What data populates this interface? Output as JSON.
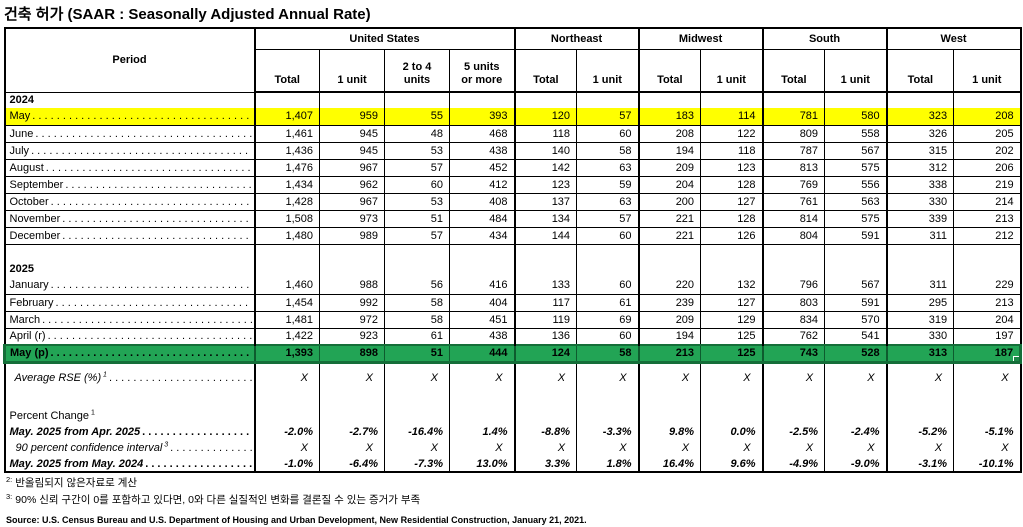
{
  "title": "건축 허가 (SAAR : Seasonally Adjusted Annual Rate)",
  "colors": {
    "highlight_yellow": "#FFFF00",
    "highlight_green": "#22A455",
    "green_selection_border": "#156E39"
  },
  "table": {
    "period_header": "Period",
    "groups": [
      {
        "label": "United States"
      },
      {
        "label": "Northeast"
      },
      {
        "label": "Midwest"
      },
      {
        "label": "South"
      },
      {
        "label": "West"
      }
    ],
    "subheaders": [
      "Total",
      "1 unit",
      "2 to 4\nunits",
      "5 units\nor more",
      "Total",
      "1 unit",
      "Total",
      "1 unit",
      "Total",
      "1 unit",
      "Total",
      "1 unit"
    ],
    "rows": [
      {
        "type": "year",
        "label": "2024"
      },
      {
        "type": "month",
        "label": "May",
        "highlight": "yellow",
        "leader": true,
        "values": [
          "1,407",
          "959",
          "55",
          "393",
          "120",
          "57",
          "183",
          "114",
          "781",
          "580",
          "323",
          "208"
        ]
      },
      {
        "type": "month",
        "label": "June",
        "leader": true,
        "values": [
          "1,461",
          "945",
          "48",
          "468",
          "118",
          "60",
          "208",
          "122",
          "809",
          "558",
          "326",
          "205"
        ]
      },
      {
        "type": "month",
        "label": "July",
        "leader": true,
        "values": [
          "1,436",
          "945",
          "53",
          "438",
          "140",
          "58",
          "194",
          "118",
          "787",
          "567",
          "315",
          "202"
        ]
      },
      {
        "type": "month",
        "label": "August",
        "leader": true,
        "values": [
          "1,476",
          "967",
          "57",
          "452",
          "142",
          "63",
          "209",
          "123",
          "813",
          "575",
          "312",
          "206"
        ]
      },
      {
        "type": "month",
        "label": "September",
        "leader": true,
        "values": [
          "1,434",
          "962",
          "60",
          "412",
          "123",
          "59",
          "204",
          "128",
          "769",
          "556",
          "338",
          "219"
        ]
      },
      {
        "type": "month",
        "label": "October",
        "leader": true,
        "values": [
          "1,428",
          "967",
          "53",
          "408",
          "137",
          "63",
          "200",
          "127",
          "761",
          "563",
          "330",
          "214"
        ]
      },
      {
        "type": "month",
        "label": "November",
        "leader": true,
        "values": [
          "1,508",
          "973",
          "51",
          "484",
          "134",
          "57",
          "221",
          "128",
          "814",
          "575",
          "339",
          "213"
        ]
      },
      {
        "type": "month",
        "label": "December",
        "leader": true,
        "values": [
          "1,480",
          "989",
          "57",
          "434",
          "144",
          "60",
          "221",
          "126",
          "804",
          "591",
          "311",
          "212"
        ]
      },
      {
        "type": "blank"
      },
      {
        "type": "year",
        "label": "2025"
      },
      {
        "type": "month",
        "label": "January",
        "leader": true,
        "values": [
          "1,460",
          "988",
          "56",
          "416",
          "133",
          "60",
          "220",
          "132",
          "796",
          "567",
          "311",
          "229"
        ]
      },
      {
        "type": "month",
        "label": "February",
        "leader": true,
        "values": [
          "1,454",
          "992",
          "58",
          "404",
          "117",
          "61",
          "239",
          "127",
          "803",
          "591",
          "295",
          "213"
        ]
      },
      {
        "type": "month",
        "label": "March",
        "leader": true,
        "values": [
          "1,481",
          "972",
          "58",
          "451",
          "119",
          "69",
          "209",
          "129",
          "834",
          "570",
          "319",
          "204"
        ]
      },
      {
        "type": "month",
        "label": "April (r)",
        "leader": true,
        "values": [
          "1,422",
          "923",
          "61",
          "438",
          "136",
          "60",
          "194",
          "125",
          "762",
          "541",
          "330",
          "197"
        ]
      },
      {
        "type": "month",
        "label": "May (p)",
        "highlight": "green",
        "leader": true,
        "values": [
          "1,393",
          "898",
          "51",
          "444",
          "124",
          "58",
          "213",
          "125",
          "743",
          "528",
          "313",
          "187"
        ]
      },
      {
        "type": "rse",
        "label": "Average RSE (%)",
        "sup": "1",
        "leader": true,
        "values": [
          "X",
          "X",
          "X",
          "X",
          "X",
          "X",
          "X",
          "X",
          "X",
          "X",
          "X",
          "X"
        ]
      },
      {
        "type": "gap"
      },
      {
        "type": "pchead",
        "label": "Percent Change",
        "sup": "1"
      },
      {
        "type": "pct",
        "label": "May. 2025 from Apr. 2025",
        "bold": true,
        "leader": true,
        "values": [
          "-2.0%",
          "-2.7%",
          "-16.4%",
          "1.4%",
          "-8.8%",
          "-3.3%",
          "9.8%",
          "0.0%",
          "-2.5%",
          "-2.4%",
          "-5.2%",
          "-5.1%"
        ]
      },
      {
        "type": "pct",
        "label": "90 percent confidence interval",
        "sup": "3",
        "indent": true,
        "xrow": true,
        "leader": true,
        "values": [
          "X",
          "X",
          "X",
          "X",
          "X",
          "X",
          "X",
          "X",
          "X",
          "X",
          "X",
          "X"
        ]
      },
      {
        "type": "pct",
        "label": "May. 2025 from May. 2024",
        "bold": true,
        "leader": true,
        "values": [
          "-1.0%",
          "-6.4%",
          "-7.3%",
          "13.0%",
          "3.3%",
          "1.8%",
          "16.4%",
          "9.6%",
          "-4.9%",
          "-9.0%",
          "-3.1%",
          "-10.1%"
        ]
      }
    ]
  },
  "footnotes": [
    {
      "marker": "2:",
      "text": "반올림되지 않은자료로 계산"
    },
    {
      "marker": "3:",
      "text": "90% 신뢰 구간이 0를 포함하고 있다면, 0와 다른 실질적인 변화를 결론질 수 있는 증거가 부족"
    }
  ],
  "source": "Source: U.S. Census Bureau and U.S. Department of Housing and Urban Development, New Residential Construction, January 21, 2021."
}
